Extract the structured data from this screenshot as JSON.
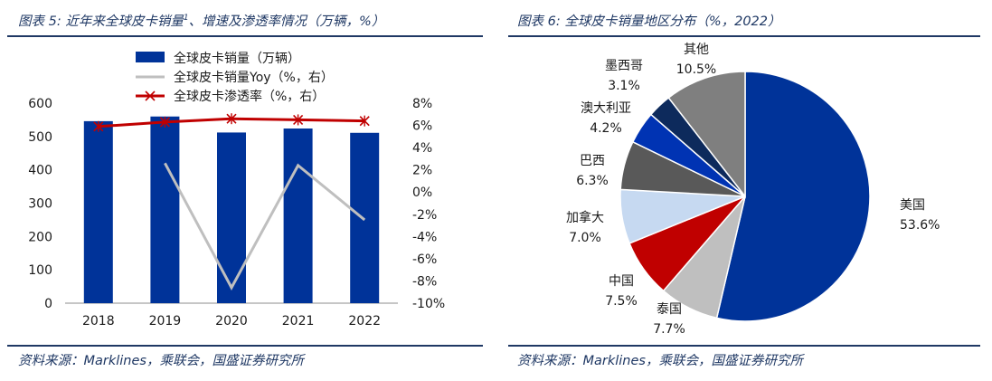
{
  "left": {
    "title": "图表 5:  近年来全球皮卡销量",
    "title_sup": "1",
    "title_tail": "、增速及渗透率情况（万辆，%）",
    "source": "资料来源：Marklines，乘联会，国盛证券研究所"
  },
  "right": {
    "title": "图表 6:  全球皮卡销量地区分布（%，2022）",
    "source": "资料来源：Marklines，乘联会，国盛证券研究所"
  },
  "chart_data": [
    {
      "type": "bar",
      "categories": [
        "2018",
        "2019",
        "2020",
        "2021",
        "2022"
      ],
      "series": [
        {
          "name": "全球皮卡销量（万辆）",
          "kind": "bar",
          "axis": "left",
          "color": "#003399",
          "values": [
            546,
            560,
            512,
            524,
            511
          ]
        },
        {
          "name": "全球皮卡销量Yoy（%，右）",
          "kind": "line",
          "axis": "right",
          "color": "#bfbfbf",
          "values": [
            null,
            2.6,
            -8.6,
            2.4,
            -2.5
          ]
        },
        {
          "name": "全球皮卡渗透率（%，右）",
          "kind": "line",
          "axis": "right",
          "color": "#c00000",
          "values": [
            5.9,
            6.3,
            6.6,
            6.5,
            6.4
          ]
        }
      ],
      "ylim": [
        0,
        600
      ],
      "yticks": [
        "0",
        "100",
        "200",
        "300",
        "400",
        "500",
        "600"
      ],
      "y2lim": [
        -10,
        8
      ],
      "y2ticks": [
        "-10%",
        "-8%",
        "-6%",
        "-4%",
        "-2%",
        "0%",
        "2%",
        "4%",
        "6%",
        "8%"
      ],
      "legend_position": "top-center"
    },
    {
      "type": "pie",
      "slices": [
        {
          "label": "美国",
          "value": 53.6,
          "value_label": "53.6%",
          "color": "#003399"
        },
        {
          "label": "泰国",
          "value": 7.7,
          "value_label": "7.7%",
          "color": "#bfbfbf"
        },
        {
          "label": "中国",
          "value": 7.5,
          "value_label": "7.5%",
          "color": "#c00000"
        },
        {
          "label": "加拿大",
          "value": 7.0,
          "value_label": "7.0%",
          "color": "#c6d9f1"
        },
        {
          "label": "巴西",
          "value": 6.3,
          "value_label": "6.3%",
          "color": "#595959"
        },
        {
          "label": "澳大利亚",
          "value": 4.2,
          "value_label": "4.2%",
          "color": "#0033b3"
        },
        {
          "label": "墨西哥",
          "value": 3.1,
          "value_label": "3.1%",
          "color": "#0d2a5c"
        },
        {
          "label": "其他",
          "value": 10.5,
          "value_label": "10.5%",
          "color": "#7f7f7f"
        }
      ],
      "start_direction": "12 o'clock, clockwise"
    }
  ]
}
